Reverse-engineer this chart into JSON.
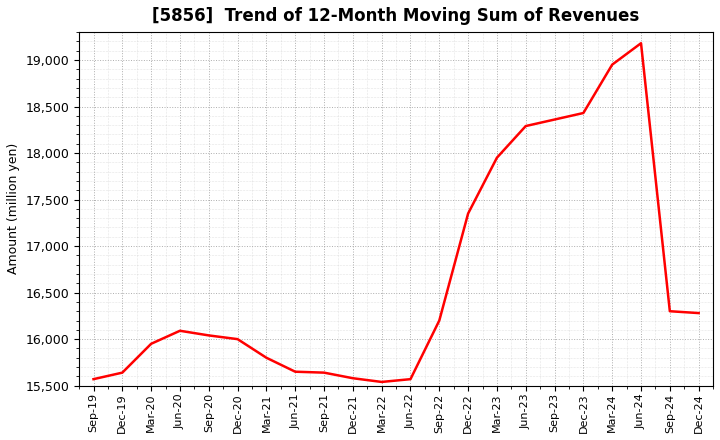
{
  "title": "[5856]  Trend of 12-Month Moving Sum of Revenues",
  "ylabel": "Amount (million yen)",
  "line_color": "#FF0000",
  "line_width": 1.8,
  "background_color": "#FFFFFF",
  "plot_bg_color": "#FFFFFF",
  "grid_color": "#999999",
  "ylim": [
    15500,
    19300
  ],
  "yticks": [
    15500,
    16000,
    16500,
    17000,
    17500,
    18000,
    18500,
    19000
  ],
  "x_labels": [
    "Sep-19",
    "Dec-19",
    "Mar-20",
    "Jun-20",
    "Sep-20",
    "Dec-20",
    "Mar-21",
    "Jun-21",
    "Sep-21",
    "Dec-21",
    "Mar-22",
    "Jun-22",
    "Sep-22",
    "Dec-22",
    "Mar-23",
    "Jun-23",
    "Sep-23",
    "Dec-23",
    "Mar-24",
    "Jun-24",
    "Sep-24",
    "Dec-24"
  ],
  "values": [
    15570,
    15640,
    15950,
    16090,
    16040,
    16000,
    15800,
    15650,
    15640,
    15580,
    15540,
    15570,
    16200,
    17350,
    17950,
    18290,
    18360,
    18430,
    18950,
    19180,
    16300,
    16280
  ]
}
